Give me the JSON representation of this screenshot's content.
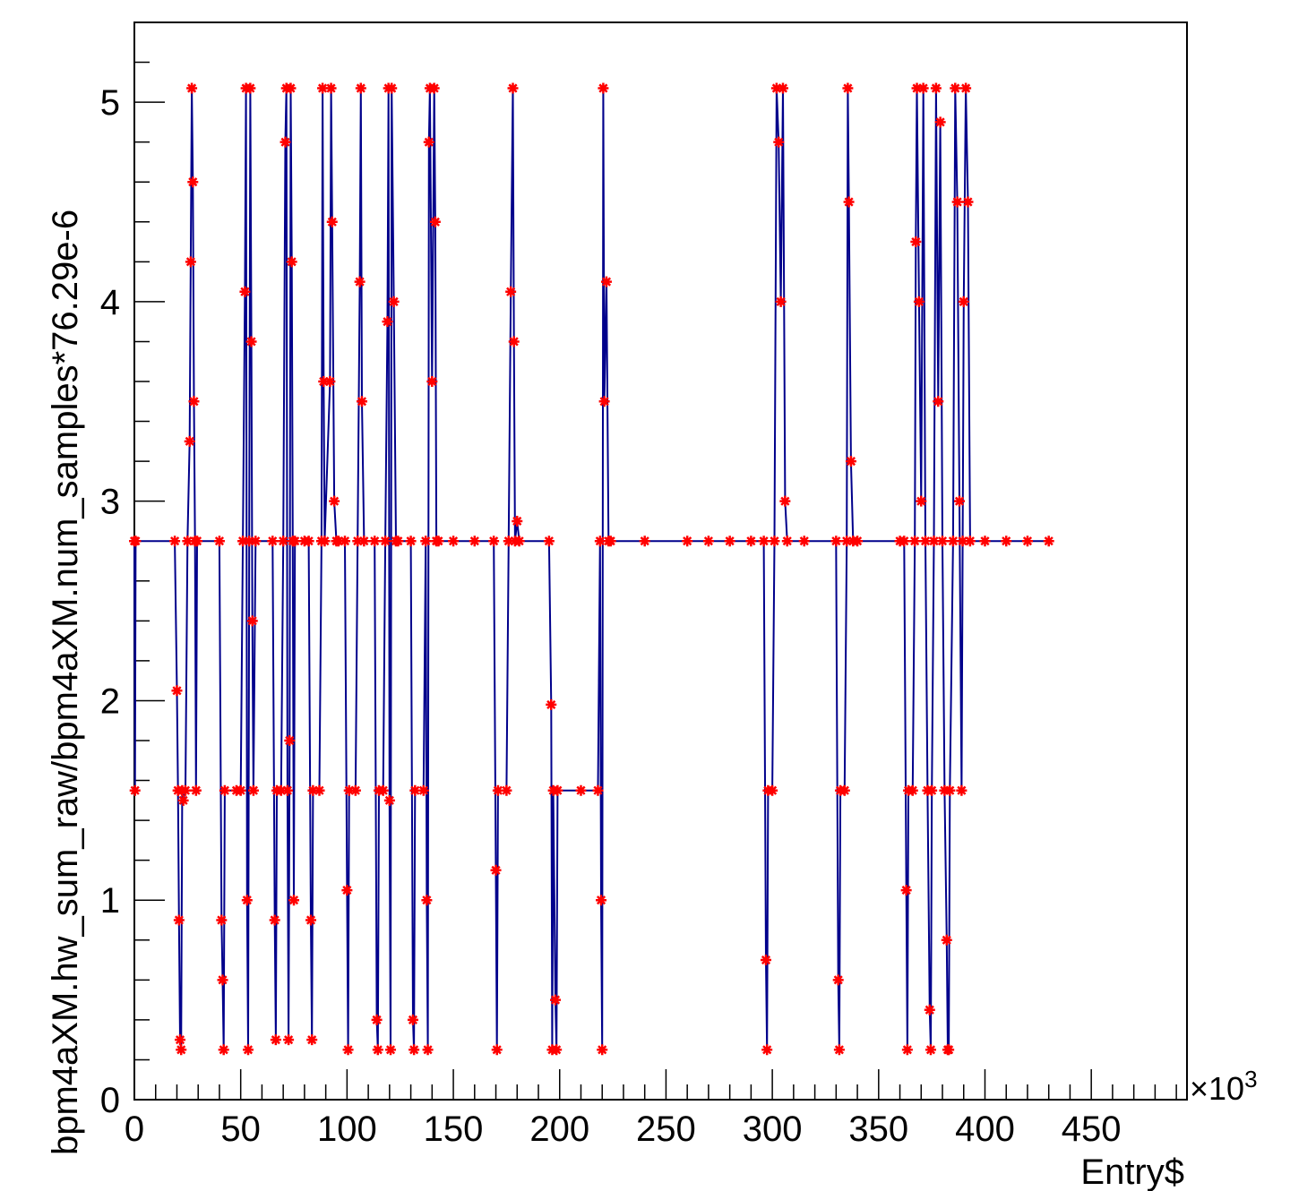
{
  "chart_data": {
    "type": "line",
    "title": "",
    "xlabel": "Entry$",
    "ylabel": "bpm4aXM.hw_sum_raw/bpm4aXM.num_samples*76.29e-6",
    "x_multiplier_label": "×10",
    "x_multiplier_exponent": "3",
    "xlim": [
      0,
      495
    ],
    "ylim": [
      0,
      5.4
    ],
    "x_ticks": [
      "0",
      "50",
      "100",
      "150",
      "200",
      "250",
      "300",
      "350",
      "400",
      "450"
    ],
    "x_tick_values": [
      0,
      50,
      100,
      150,
      200,
      250,
      300,
      350,
      400,
      450
    ],
    "y_ticks": [
      "0",
      "1",
      "2",
      "3",
      "4",
      "5"
    ],
    "y_tick_values": [
      0,
      1,
      2,
      3,
      4,
      5
    ],
    "grid": false,
    "legend": "none",
    "series": [
      {
        "line_color": "#00008b",
        "marker_color": "#ff0000",
        "marker": "asterisk",
        "points": [
          [
            0,
            2.8
          ],
          [
            0.3,
            1.55
          ],
          [
            0.6,
            2.8
          ],
          [
            19,
            2.8
          ],
          [
            20,
            2.05
          ],
          [
            20.5,
            1.55
          ],
          [
            21,
            0.9
          ],
          [
            21.5,
            0.3
          ],
          [
            22,
            0.25
          ],
          [
            22.5,
            1.55
          ],
          [
            23,
            1.5
          ],
          [
            24,
            1.55
          ],
          [
            25,
            2.8
          ],
          [
            26,
            3.3
          ],
          [
            26.5,
            4.2
          ],
          [
            27,
            5.07
          ],
          [
            27.5,
            4.6
          ],
          [
            28,
            3.5
          ],
          [
            28.5,
            2.8
          ],
          [
            29,
            1.55
          ],
          [
            29.5,
            2.8
          ],
          [
            40,
            2.8
          ],
          [
            41,
            0.9
          ],
          [
            41.5,
            0.6
          ],
          [
            42,
            0.25
          ],
          [
            42.5,
            1.55
          ],
          [
            48,
            1.55
          ],
          [
            50,
            1.55
          ],
          [
            51,
            2.8
          ],
          [
            52,
            4.05
          ],
          [
            52.5,
            5.07
          ],
          [
            53,
            1.0
          ],
          [
            53.5,
            0.25
          ],
          [
            54,
            2.8
          ],
          [
            54.5,
            5.07
          ],
          [
            55,
            3.8
          ],
          [
            55.5,
            2.4
          ],
          [
            56,
            1.55
          ],
          [
            57,
            2.8
          ],
          [
            65,
            2.8
          ],
          [
            66,
            0.9
          ],
          [
            66.5,
            0.3
          ],
          [
            67,
            1.55
          ],
          [
            69,
            1.55
          ],
          [
            70,
            2.8
          ],
          [
            71,
            4.8
          ],
          [
            71.5,
            5.07
          ],
          [
            72,
            1.55
          ],
          [
            72.5,
            0.3
          ],
          [
            73,
            1.8
          ],
          [
            73.5,
            5.07
          ],
          [
            74,
            4.2
          ],
          [
            74.5,
            2.8
          ],
          [
            75,
            1.0
          ],
          [
            75.5,
            2.8
          ],
          [
            80,
            2.8
          ],
          [
            82,
            2.8
          ],
          [
            83,
            0.9
          ],
          [
            83.5,
            0.3
          ],
          [
            84,
            1.55
          ],
          [
            87,
            1.55
          ],
          [
            88,
            2.8
          ],
          [
            88.5,
            5.07
          ],
          [
            89,
            3.6
          ],
          [
            89.5,
            2.8
          ],
          [
            92,
            3.6
          ],
          [
            92.5,
            5.07
          ],
          [
            93,
            4.4
          ],
          [
            94,
            3.0
          ],
          [
            95,
            2.8
          ],
          [
            96,
            2.8
          ],
          [
            99,
            2.8
          ],
          [
            100,
            1.05
          ],
          [
            100.5,
            0.25
          ],
          [
            101,
            1.55
          ],
          [
            104,
            1.55
          ],
          [
            105,
            2.8
          ],
          [
            106,
            4.1
          ],
          [
            106.5,
            5.07
          ],
          [
            107,
            3.5
          ],
          [
            108,
            2.8
          ],
          [
            113,
            2.8
          ],
          [
            114,
            0.4
          ],
          [
            114.5,
            0.25
          ],
          [
            115,
            1.55
          ],
          [
            117,
            1.55
          ],
          [
            118,
            2.8
          ],
          [
            119,
            3.9
          ],
          [
            119.5,
            5.07
          ],
          [
            120,
            1.5
          ],
          [
            120.5,
            0.25
          ],
          [
            121,
            5.07
          ],
          [
            122,
            4.0
          ],
          [
            123,
            2.8
          ],
          [
            124,
            2.8
          ],
          [
            130,
            2.8
          ],
          [
            131,
            0.4
          ],
          [
            131.5,
            0.25
          ],
          [
            132,
            1.55
          ],
          [
            136,
            1.55
          ],
          [
            137,
            2.8
          ],
          [
            137.5,
            1.0
          ],
          [
            138,
            0.25
          ],
          [
            138.5,
            4.8
          ],
          [
            139,
            5.07
          ],
          [
            140,
            3.6
          ],
          [
            141,
            5.07
          ],
          [
            141.5,
            4.4
          ],
          [
            142,
            2.8
          ],
          [
            143,
            2.8
          ],
          [
            150,
            2.8
          ],
          [
            160,
            2.8
          ],
          [
            169,
            2.8
          ],
          [
            170,
            1.15
          ],
          [
            170.5,
            0.25
          ],
          [
            171,
            1.55
          ],
          [
            175,
            1.55
          ],
          [
            176,
            2.8
          ],
          [
            177,
            4.05
          ],
          [
            178,
            5.07
          ],
          [
            178.5,
            3.8
          ],
          [
            179,
            2.8
          ],
          [
            180,
            2.9
          ],
          [
            181,
            2.8
          ],
          [
            195,
            2.8
          ],
          [
            196,
            1.98
          ],
          [
            196.5,
            0.25
          ],
          [
            197,
            1.55
          ],
          [
            198,
            0.5
          ],
          [
            198.5,
            0.25
          ],
          [
            199,
            1.55
          ],
          [
            210,
            1.55
          ],
          [
            218,
            1.55
          ],
          [
            219,
            2.8
          ],
          [
            219.5,
            1.0
          ],
          [
            220,
            0.25
          ],
          [
            220.5,
            5.07
          ],
          [
            221,
            3.5
          ],
          [
            222,
            4.1
          ],
          [
            223,
            2.8
          ],
          [
            224,
            2.8
          ],
          [
            240,
            2.8
          ],
          [
            260,
            2.8
          ],
          [
            270,
            2.8
          ],
          [
            280,
            2.8
          ],
          [
            290,
            2.8
          ],
          [
            296,
            2.8
          ],
          [
            297,
            0.7
          ],
          [
            297.5,
            0.25
          ],
          [
            298,
            1.55
          ],
          [
            300,
            1.55
          ],
          [
            301,
            2.8
          ],
          [
            302,
            5.07
          ],
          [
            303,
            4.8
          ],
          [
            304,
            4.0
          ],
          [
            305,
            5.07
          ],
          [
            306,
            3.0
          ],
          [
            307,
            2.8
          ],
          [
            315,
            2.8
          ],
          [
            330,
            2.8
          ],
          [
            331,
            0.6
          ],
          [
            331.5,
            0.25
          ],
          [
            332,
            1.55
          ],
          [
            334,
            1.55
          ],
          [
            335,
            2.8
          ],
          [
            335.5,
            5.07
          ],
          [
            336,
            4.5
          ],
          [
            337,
            3.2
          ],
          [
            338,
            2.8
          ],
          [
            340,
            2.8
          ],
          [
            360,
            2.8
          ],
          [
            362,
            2.8
          ],
          [
            363,
            1.05
          ],
          [
            363.5,
            0.25
          ],
          [
            364,
            1.55
          ],
          [
            366,
            1.55
          ],
          [
            367,
            2.8
          ],
          [
            367.5,
            4.3
          ],
          [
            368,
            5.07
          ],
          [
            369,
            4.0
          ],
          [
            370,
            3.0
          ],
          [
            371,
            5.07
          ],
          [
            372,
            2.8
          ],
          [
            373,
            1.55
          ],
          [
            374,
            0.45
          ],
          [
            374.5,
            0.25
          ],
          [
            375,
            1.55
          ],
          [
            376,
            2.8
          ],
          [
            377,
            5.07
          ],
          [
            378,
            3.5
          ],
          [
            379,
            4.9
          ],
          [
            380,
            2.8
          ],
          [
            381,
            1.55
          ],
          [
            382,
            0.8
          ],
          [
            382.5,
            0.25
          ],
          [
            383,
            0.25
          ],
          [
            383.5,
            1.55
          ],
          [
            385,
            2.8
          ],
          [
            386,
            5.07
          ],
          [
            387,
            4.5
          ],
          [
            388,
            3.0
          ],
          [
            389,
            1.55
          ],
          [
            389.5,
            2.8
          ],
          [
            390,
            4.0
          ],
          [
            391,
            5.07
          ],
          [
            392,
            4.5
          ],
          [
            393,
            2.8
          ],
          [
            400,
            2.8
          ],
          [
            410,
            2.8
          ],
          [
            420,
            2.8
          ],
          [
            430,
            2.8
          ]
        ]
      }
    ]
  }
}
